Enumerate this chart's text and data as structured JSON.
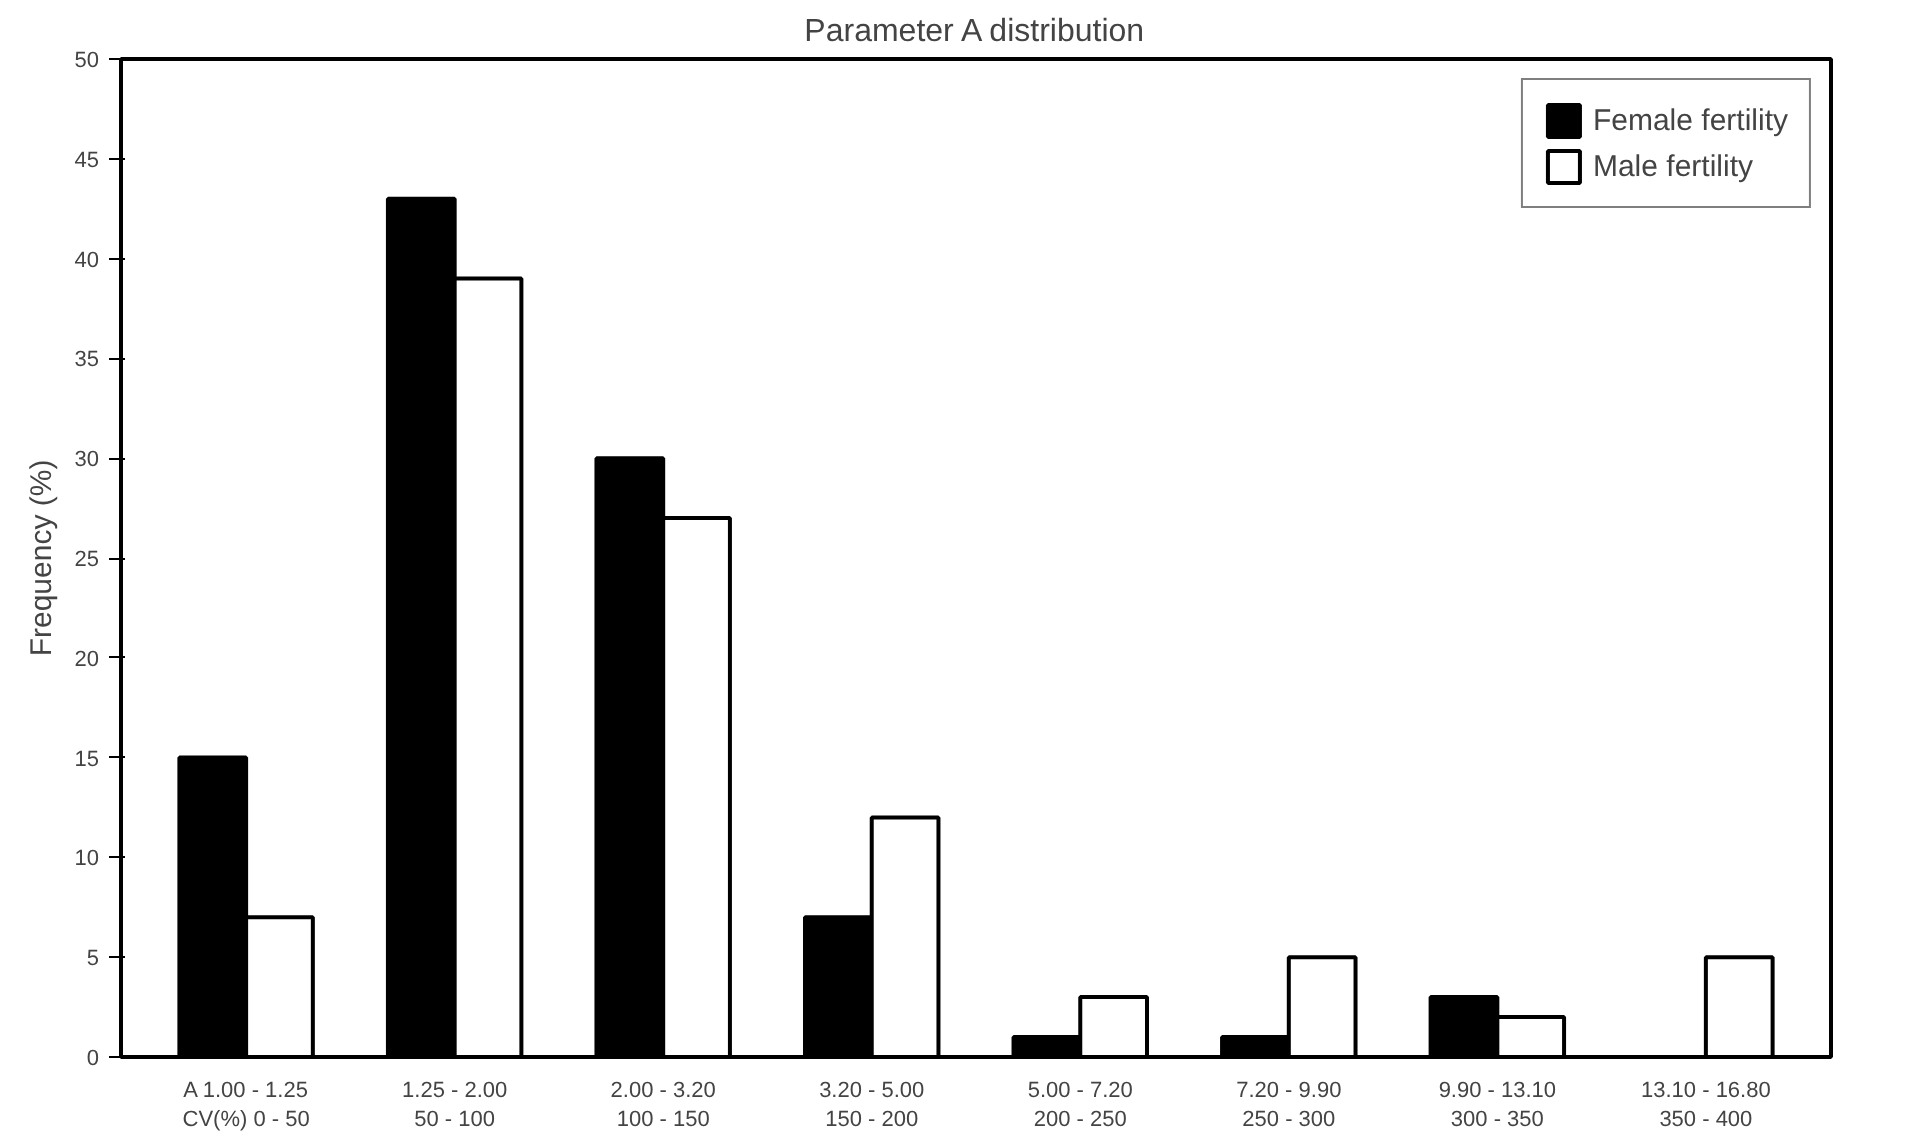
{
  "chart_data": {
    "type": "bar",
    "title": "Parameter A distribution",
    "ylabel": "Frequency (%)",
    "categories": [
      "A 1.00 - 1.25\nCV(%) 0 - 50",
      "1.25 - 2.00\n50 - 100",
      "2.00 - 3.20\n100 - 150",
      "3.20 - 5.00\n150 - 200",
      "5.00 - 7.20\n200 - 250",
      "7.20 - 9.90\n250 - 300",
      "9.90 - 13.10\n300 - 350",
      "13.10 - 16.80\n350 - 400"
    ],
    "series": [
      {
        "name": "Female fertility",
        "color": "#000000",
        "values": [
          15,
          43,
          30,
          7,
          1,
          1,
          3,
          0
        ]
      },
      {
        "name": "Male fertility",
        "color": "#ffffff",
        "values": [
          7,
          39,
          27,
          12,
          3,
          5,
          2,
          5
        ]
      }
    ],
    "ylim": [
      0,
      50
    ],
    "yticks": [
      0,
      5,
      10,
      15,
      20,
      25,
      30,
      35,
      40,
      45,
      50
    ],
    "grid": false,
    "legend": "top right"
  }
}
